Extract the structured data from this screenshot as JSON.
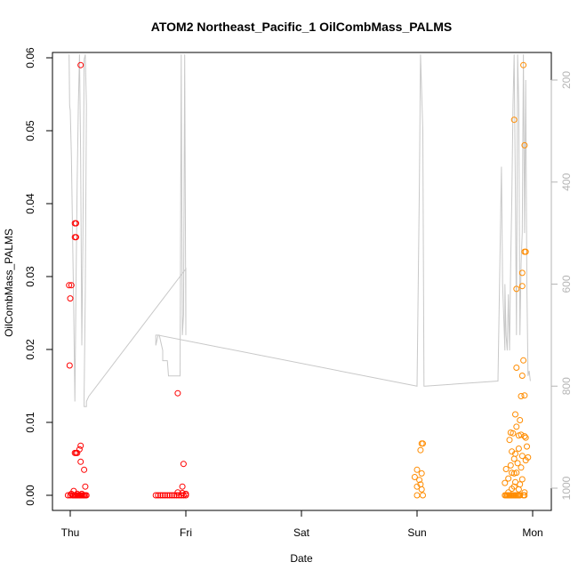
{
  "chart_data": {
    "type": "scatter",
    "title": "ATOM2 Northeast_Pacific_1 OilCombMass_PALMS",
    "xlabel": "Date",
    "ylabel": "OilCombMass_PALMS",
    "x_ticks": [
      "Thu",
      "Fri",
      "Sat",
      "Sun",
      "Mon"
    ],
    "x_range": [
      "Thu 00:00",
      "Mon 00:00"
    ],
    "x_unit": "day",
    "y_ticks": [
      0.0,
      0.01,
      0.02,
      0.03,
      0.04,
      0.05,
      0.06
    ],
    "ylim": [
      0.0,
      0.0615
    ],
    "y_right_ticks": [
      200,
      400,
      600,
      800,
      1000
    ],
    "y_right_lim": [
      1045,
      145
    ],
    "y_right_reversed": true,
    "grid": false,
    "colors": {
      "series_thu": "#ff0000",
      "series_fri": "#ff0000",
      "series_sun": "#ff8c00",
      "series_mon": "#ff8c00",
      "altitude_line": "#c8c8c8"
    },
    "series": [
      {
        "color": "#ff0000",
        "points": [
          [
            -0.01,
            0.0288
          ],
          [
            0.01,
            0.0288
          ],
          [
            0.0,
            0.027
          ],
          [
            -0.005,
            0.0178
          ],
          [
            0.04,
            0.0373
          ],
          [
            0.05,
            0.0373
          ],
          [
            0.04,
            0.0354
          ],
          [
            0.05,
            0.0354
          ],
          [
            0.09,
            0.059
          ],
          [
            0.04,
            0.0058
          ],
          [
            0.05,
            0.0058
          ],
          [
            0.06,
            0.0058
          ],
          [
            0.08,
            0.0063
          ],
          [
            0.09,
            0.0068
          ],
          [
            0.09,
            0.0046
          ],
          [
            0.12,
            0.0035
          ],
          [
            0.13,
            0.0012
          ],
          [
            0.03,
            0.0006
          ],
          [
            -0.02,
            0.0
          ],
          [
            0.0,
            0.0
          ],
          [
            0.02,
            0.0
          ],
          [
            0.03,
            0.0
          ],
          [
            0.04,
            0.0
          ],
          [
            0.05,
            0.0
          ],
          [
            0.06,
            0.0
          ],
          [
            0.07,
            0.0
          ],
          [
            0.08,
            0.0
          ],
          [
            0.09,
            0.0
          ],
          [
            0.1,
            0.0
          ],
          [
            0.11,
            0.0
          ],
          [
            0.12,
            0.0
          ],
          [
            0.13,
            0.0
          ],
          [
            0.14,
            0.0
          ],
          [
            0.01,
            0.0002
          ],
          [
            0.06,
            0.0002
          ],
          [
            0.1,
            0.0002
          ]
        ]
      },
      {
        "color": "#ff0000",
        "points": [
          [
            0.93,
            0.014
          ],
          [
            0.98,
            0.0043
          ],
          [
            0.97,
            0.0012
          ],
          [
            0.74,
            0.0
          ],
          [
            0.76,
            0.0
          ],
          [
            0.78,
            0.0
          ],
          [
            0.8,
            0.0
          ],
          [
            0.82,
            0.0
          ],
          [
            0.84,
            0.0
          ],
          [
            0.86,
            0.0
          ],
          [
            0.88,
            0.0
          ],
          [
            0.9,
            0.0
          ],
          [
            0.92,
            0.0
          ],
          [
            0.94,
            0.0
          ],
          [
            0.96,
            0.0
          ],
          [
            0.98,
            0.0
          ],
          [
            1.0,
            0.0
          ],
          [
            0.93,
            0.0004
          ],
          [
            0.97,
            0.0003
          ],
          [
            1.0,
            0.0002
          ]
        ]
      },
      {
        "color": "#ff8c00",
        "points": [
          [
            3.04,
            0.0071
          ],
          [
            3.05,
            0.0071
          ],
          [
            3.03,
            0.0062
          ],
          [
            3.0,
            0.0035
          ],
          [
            3.04,
            0.003
          ],
          [
            2.98,
            0.0025
          ],
          [
            3.02,
            0.0021
          ],
          [
            3.0,
            0.0012
          ],
          [
            3.03,
            0.0015
          ],
          [
            3.04,
            0.0008
          ],
          [
            3.0,
            0.0
          ],
          [
            3.05,
            0.0
          ]
        ]
      },
      {
        "color": "#ff8c00",
        "points": [
          [
            3.92,
            0.059
          ],
          [
            3.84,
            0.0515
          ],
          [
            3.93,
            0.048
          ],
          [
            3.93,
            0.0334
          ],
          [
            3.94,
            0.0334
          ],
          [
            3.91,
            0.0305
          ],
          [
            3.91,
            0.0287
          ],
          [
            3.86,
            0.0283
          ],
          [
            3.92,
            0.0185
          ],
          [
            3.86,
            0.0175
          ],
          [
            3.91,
            0.0164
          ],
          [
            3.9,
            0.0136
          ],
          [
            3.93,
            0.0137
          ],
          [
            3.85,
            0.0111
          ],
          [
            3.89,
            0.0103
          ],
          [
            3.81,
            0.0086
          ],
          [
            3.86,
            0.0094
          ],
          [
            3.83,
            0.0085
          ],
          [
            3.88,
            0.0082
          ],
          [
            3.93,
            0.0081
          ],
          [
            3.94,
            0.0079
          ],
          [
            3.8,
            0.0076
          ],
          [
            3.9,
            0.0083
          ],
          [
            3.95,
            0.0067
          ],
          [
            3.88,
            0.0064
          ],
          [
            3.82,
            0.006
          ],
          [
            3.85,
            0.0057
          ],
          [
            3.91,
            0.0054
          ],
          [
            3.96,
            0.0052
          ],
          [
            3.84,
            0.005
          ],
          [
            3.94,
            0.0048
          ],
          [
            3.87,
            0.0044
          ],
          [
            3.81,
            0.0041
          ],
          [
            3.9,
            0.0038
          ],
          [
            3.77,
            0.0036
          ],
          [
            3.82,
            0.0031
          ],
          [
            3.84,
            0.003
          ],
          [
            3.86,
            0.0031
          ],
          [
            3.79,
            0.0023
          ],
          [
            3.91,
            0.0022
          ],
          [
            3.85,
            0.0018
          ],
          [
            3.76,
            0.0017
          ],
          [
            3.89,
            0.0015
          ],
          [
            3.84,
            0.0012
          ],
          [
            3.82,
            0.0009
          ],
          [
            3.88,
            0.0008
          ],
          [
            3.79,
            0.0004
          ],
          [
            3.93,
            0.0004
          ],
          [
            3.76,
            0.0
          ],
          [
            3.77,
            0.0
          ],
          [
            3.78,
            0.0
          ],
          [
            3.79,
            0.0
          ],
          [
            3.8,
            0.0
          ],
          [
            3.81,
            0.0
          ],
          [
            3.82,
            0.0
          ],
          [
            3.83,
            0.0
          ],
          [
            3.84,
            0.0
          ],
          [
            3.85,
            0.0
          ],
          [
            3.86,
            0.0
          ],
          [
            3.87,
            0.0
          ],
          [
            3.88,
            0.0
          ],
          [
            3.89,
            0.0
          ],
          [
            3.92,
            0.0
          ],
          [
            3.93,
            0.0
          ]
        ]
      }
    ],
    "altitude_line": {
      "color": "#c8c8c8",
      "points": [
        [
          -0.01,
          150
        ],
        [
          -0.005,
          250
        ],
        [
          0.0,
          260
        ],
        [
          0.01,
          350
        ],
        [
          0.02,
          500
        ],
        [
          0.03,
          650
        ],
        [
          0.04,
          830
        ],
        [
          0.05,
          600
        ],
        [
          0.06,
          400
        ],
        [
          0.07,
          250
        ],
        [
          0.08,
          150
        ],
        [
          0.09,
          350
        ],
        [
          0.1,
          720
        ],
        [
          0.11,
          500
        ],
        [
          0.12,
          160
        ],
        [
          0.13,
          150
        ],
        [
          0.14,
          250
        ],
        [
          0.13,
          620
        ],
        [
          0.12,
          820
        ],
        [
          0.12,
          840
        ],
        [
          0.14,
          840
        ],
        [
          0.14,
          830
        ],
        [
          0.16,
          820
        ],
        [
          1.0,
          570
        ],
        [
          1.0,
          650
        ],
        [
          1.0,
          700
        ],
        [
          0.99,
          150
        ],
        [
          0.98,
          660
        ],
        [
          0.97,
          700
        ],
        [
          0.96,
          150
        ],
        [
          0.95,
          780
        ],
        [
          0.92,
          780
        ],
        [
          0.85,
          780
        ],
        [
          0.84,
          750
        ],
        [
          0.8,
          750
        ],
        [
          0.8,
          730
        ],
        [
          0.77,
          700
        ],
        [
          0.74,
          700
        ],
        [
          0.74,
          720
        ],
        [
          0.76,
          700
        ],
        [
          3.0,
          800
        ],
        [
          3.02,
          410
        ],
        [
          3.03,
          150
        ],
        [
          3.05,
          300
        ],
        [
          3.06,
          800
        ],
        [
          3.07,
          800
        ],
        [
          3.7,
          790
        ],
        [
          3.73,
          370
        ],
        [
          3.74,
          600
        ],
        [
          3.76,
          730
        ],
        [
          3.76,
          600
        ],
        [
          3.77,
          700
        ],
        [
          3.78,
          730
        ],
        [
          3.79,
          620
        ],
        [
          3.8,
          730
        ],
        [
          3.81,
          560
        ],
        [
          3.82,
          430
        ],
        [
          3.83,
          250
        ],
        [
          3.84,
          150
        ],
        [
          3.85,
          400
        ],
        [
          3.86,
          700
        ],
        [
          3.87,
          150
        ],
        [
          3.88,
          250
        ],
        [
          3.89,
          700
        ],
        [
          3.9,
          560
        ],
        [
          3.91,
          500
        ],
        [
          3.92,
          150
        ],
        [
          3.93,
          500
        ],
        [
          3.94,
          200
        ],
        [
          3.95,
          600
        ],
        [
          3.96,
          780
        ],
        [
          3.97,
          770
        ],
        [
          3.98,
          790
        ]
      ]
    }
  }
}
